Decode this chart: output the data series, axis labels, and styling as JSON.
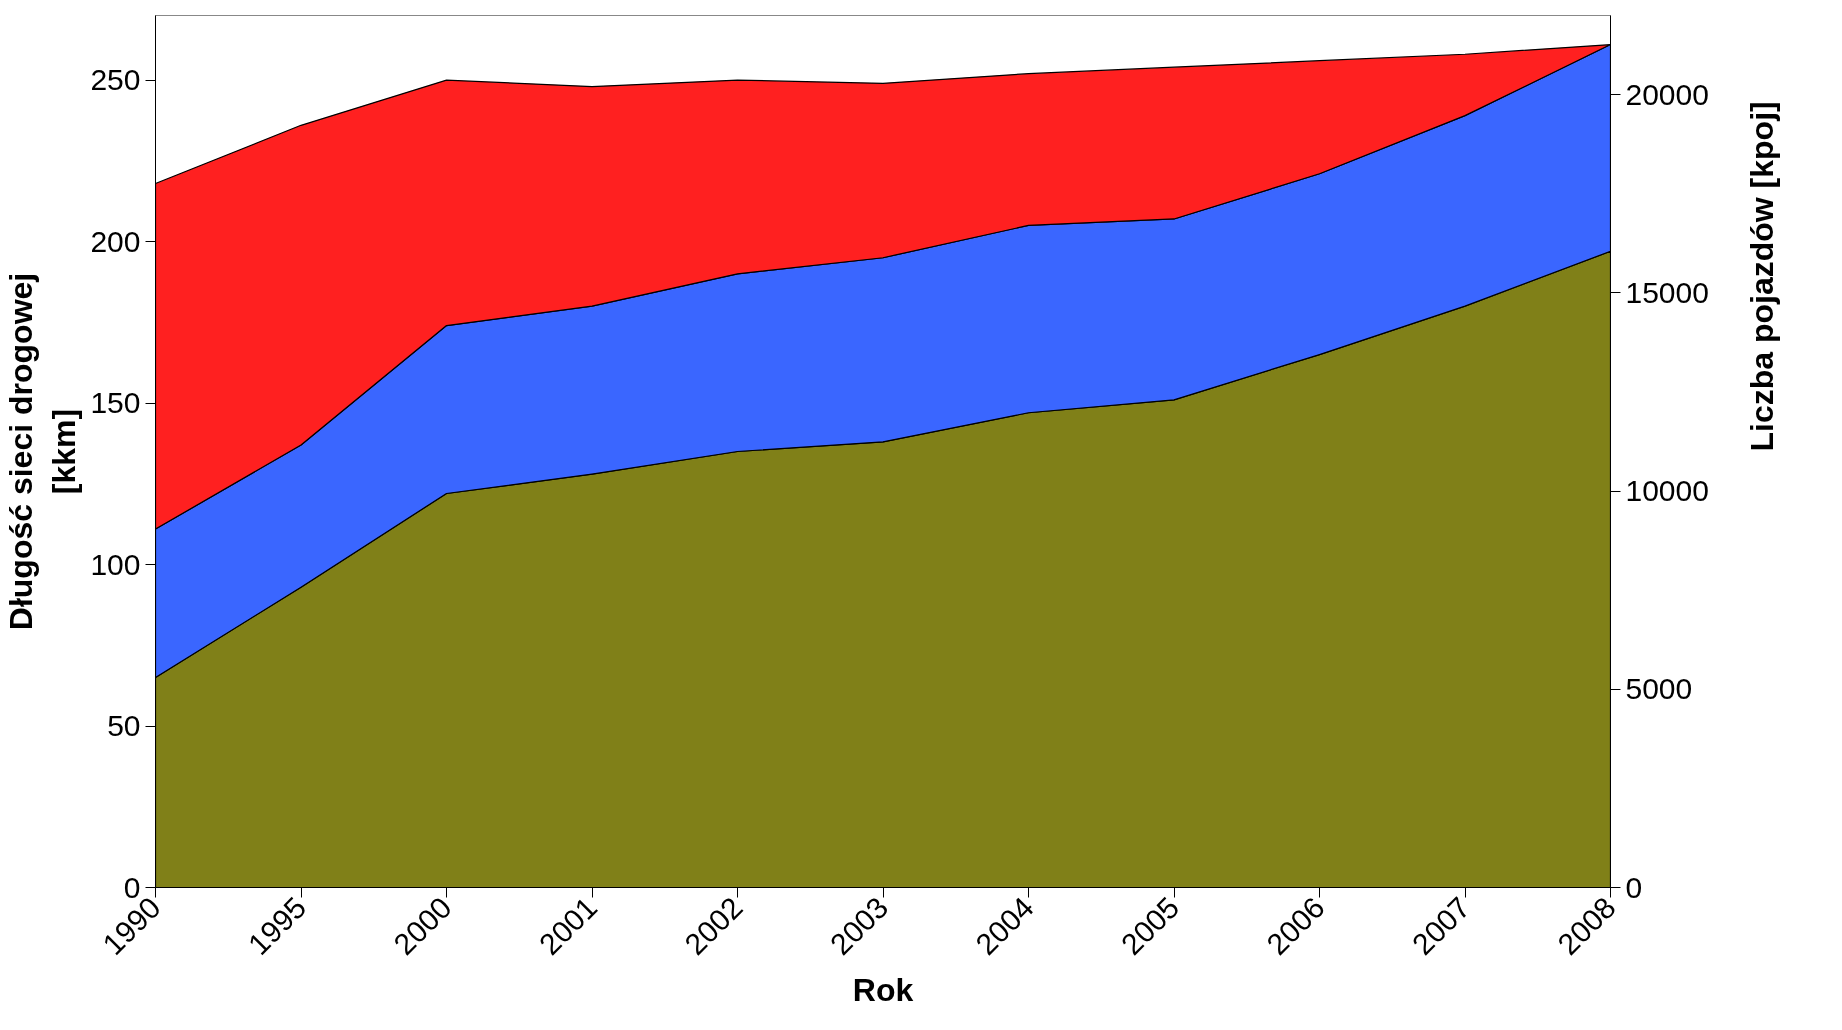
{
  "chart_data": {
    "type": "area",
    "xlabel": "Rok",
    "ylabel": "Długość sieci drogowej\n[kkm]",
    "y2label": "Liczba pojazdów  [kpoj]",
    "categories": [
      "1990",
      "1995",
      "2000",
      "2001",
      "2002",
      "2003",
      "2004",
      "2005",
      "2006",
      "2007",
      "2008"
    ],
    "series": [
      {
        "color": "#808018",
        "values": [
          65,
          93,
          122,
          128,
          135,
          138,
          147,
          151,
          165,
          180,
          197
        ]
      },
      {
        "color": "#3a66ff",
        "values": [
          46,
          44,
          52,
          52,
          55,
          57,
          58,
          56,
          56,
          59,
          64
        ]
      },
      {
        "color": "#ff2020",
        "values": [
          107,
          99,
          76,
          68,
          60,
          54,
          47,
          47,
          35,
          19,
          0
        ]
      }
    ],
    "stacked": true,
    "ylim": [
      0,
      270
    ],
    "yticks": [
      0,
      50,
      100,
      150,
      200,
      250
    ],
    "y2lim": [
      0,
      22000
    ],
    "y2ticks": [
      0,
      5000,
      10000,
      15000,
      20000
    ],
    "grid": false
  }
}
